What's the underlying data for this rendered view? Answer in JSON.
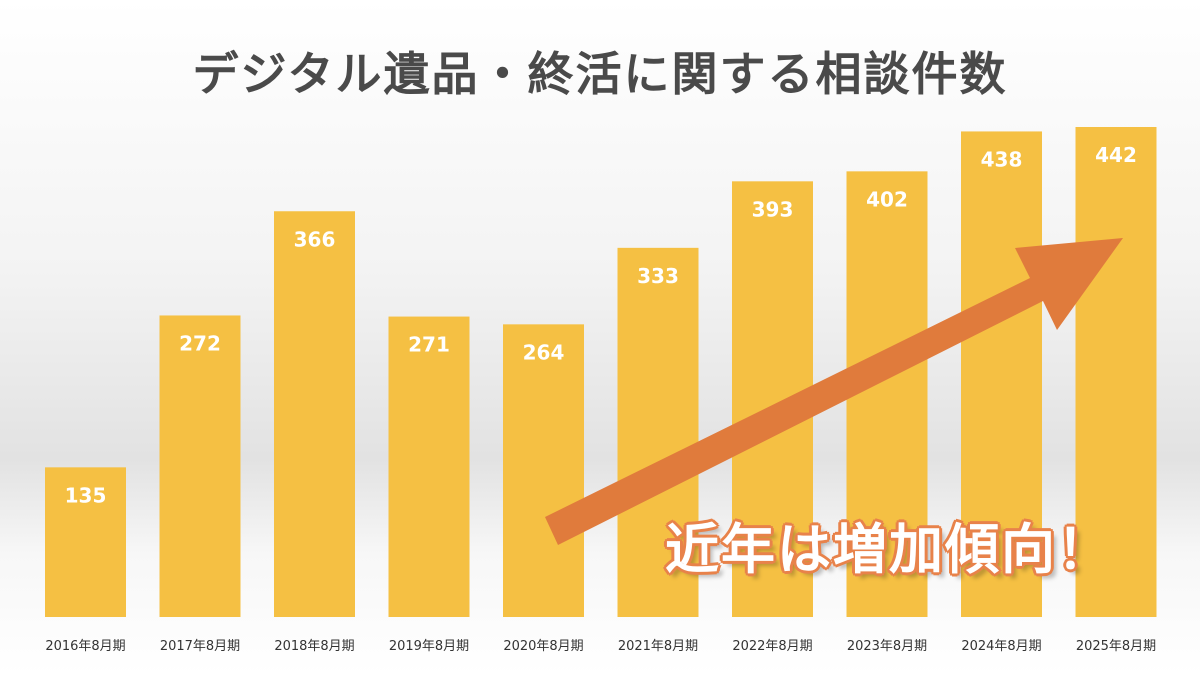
{
  "chart_data": {
    "type": "bar",
    "title": "デジタル遺品・終活に関する相談件数",
    "categories": [
      "2016年8月期",
      "2017年8月期",
      "2018年8月期",
      "2019年8月期",
      "2020年8月期",
      "2021年8月期",
      "2022年8月期",
      "2023年8月期",
      "2024年8月期",
      "2025年8月期"
    ],
    "values": [
      135,
      272,
      366,
      271,
      264,
      333,
      393,
      402,
      438,
      442
    ],
    "ylim": [
      0,
      442
    ],
    "grid": false,
    "legend": "none",
    "annotation": "近年は増加傾向！",
    "colors": {
      "bar": "#F5C043",
      "arrow": "#E07B3C",
      "annotation_stroke": "#E8824A",
      "title": "#4A4A4A"
    }
  }
}
